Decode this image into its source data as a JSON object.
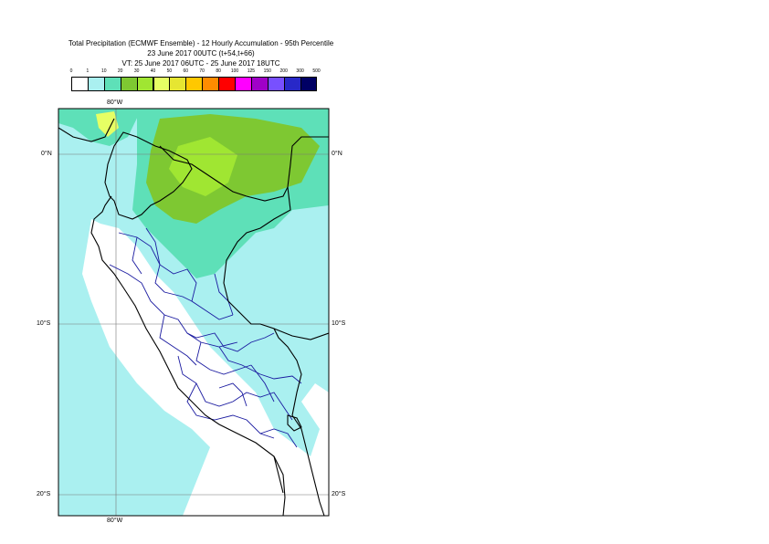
{
  "header": {
    "line1": "Total Precipitation (ECMWF Ensemble) - 12 Hourly Accumulation - 95th Percentile",
    "line2": "23 June 2017 00UTC (t+54,t+66)",
    "line3": "VT: 25 June 2017 06UTC - 25 June 2017 18UTC"
  },
  "legend": {
    "ticks": [
      "0",
      "1",
      "10",
      "20",
      "30",
      "40",
      "50",
      "60",
      "70",
      "80",
      "100",
      "125",
      "150",
      "200",
      "300",
      "500"
    ],
    "colors": [
      "#ffffff",
      "#aaf0f0",
      "#5ee0b8",
      "#7ec832",
      "#a0e632",
      "#e6ff64",
      "#e6e632",
      "#ffc800",
      "#ff8c00",
      "#ff0000",
      "#ff00ff",
      "#a000c8",
      "#7850ff",
      "#2828c8",
      "#000064"
    ]
  },
  "axes": {
    "lon_top": "80°W",
    "lon_bottom": "80°W",
    "lat_0": "0°N",
    "lat_10": "10°S",
    "lat_20": "20°S"
  }
}
